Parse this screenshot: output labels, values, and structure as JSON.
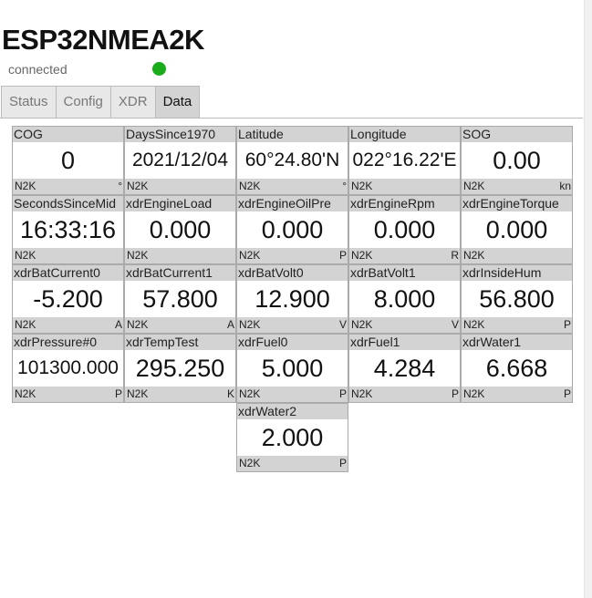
{
  "header": {
    "title": "ESP32NMEA2K",
    "status": "connected",
    "status_color": "#1aac1a"
  },
  "tabs": [
    {
      "label": "Status"
    },
    {
      "label": "Config"
    },
    {
      "label": "XDR"
    },
    {
      "label": "Data",
      "active": true
    }
  ],
  "cells": [
    {
      "name": "COG",
      "value": "0",
      "source": "N2K",
      "unit": "°"
    },
    {
      "name": "DaysSince1970",
      "value": "2021/12/04",
      "source": "N2K",
      "unit": ""
    },
    {
      "name": "Latitude",
      "value": "60°24.80'N",
      "source": "N2K",
      "unit": "°"
    },
    {
      "name": "Longitude",
      "value": "022°16.22'E",
      "source": "N2K",
      "unit": ""
    },
    {
      "name": "SOG",
      "value": "0.00",
      "source": "N2K",
      "unit": "kn"
    },
    {
      "name": "SecondsSinceMid",
      "value": "16:33:16",
      "source": "N2K",
      "unit": ""
    },
    {
      "name": "xdrEngineLoad",
      "value": "0.000",
      "source": "N2K",
      "unit": ""
    },
    {
      "name": "xdrEngineOilPre",
      "value": "0.000",
      "source": "N2K",
      "unit": "P"
    },
    {
      "name": "xdrEngineRpm",
      "value": "0.000",
      "source": "N2K",
      "unit": "R"
    },
    {
      "name": "xdrEngineTorque",
      "value": "0.000",
      "source": "N2K",
      "unit": ""
    },
    {
      "name": "xdrBatCurrent0",
      "value": "-5.200",
      "source": "N2K",
      "unit": "A"
    },
    {
      "name": "xdrBatCurrent1",
      "value": "57.800",
      "source": "N2K",
      "unit": "A"
    },
    {
      "name": "xdrBatVolt0",
      "value": "12.900",
      "source": "N2K",
      "unit": "V"
    },
    {
      "name": "xdrBatVolt1",
      "value": "8.000",
      "source": "N2K",
      "unit": "V"
    },
    {
      "name": "xdrInsideHum",
      "value": "56.800",
      "source": "N2K",
      "unit": "P"
    },
    {
      "name": "xdrPressure#0",
      "value": "101300.000",
      "source": "N2K",
      "unit": "P"
    },
    {
      "name": "xdrTempTest",
      "value": "295.250",
      "source": "N2K",
      "unit": "K"
    },
    {
      "name": "xdrFuel0",
      "value": "5.000",
      "source": "N2K",
      "unit": "P"
    },
    {
      "name": "xdrFuel1",
      "value": "4.284",
      "source": "N2K",
      "unit": "P"
    },
    {
      "name": "xdrWater1",
      "value": "6.668",
      "source": "N2K",
      "unit": "P"
    },
    {
      "name": "xdrWater2",
      "value": "2.000",
      "source": "N2K",
      "unit": "P"
    }
  ]
}
